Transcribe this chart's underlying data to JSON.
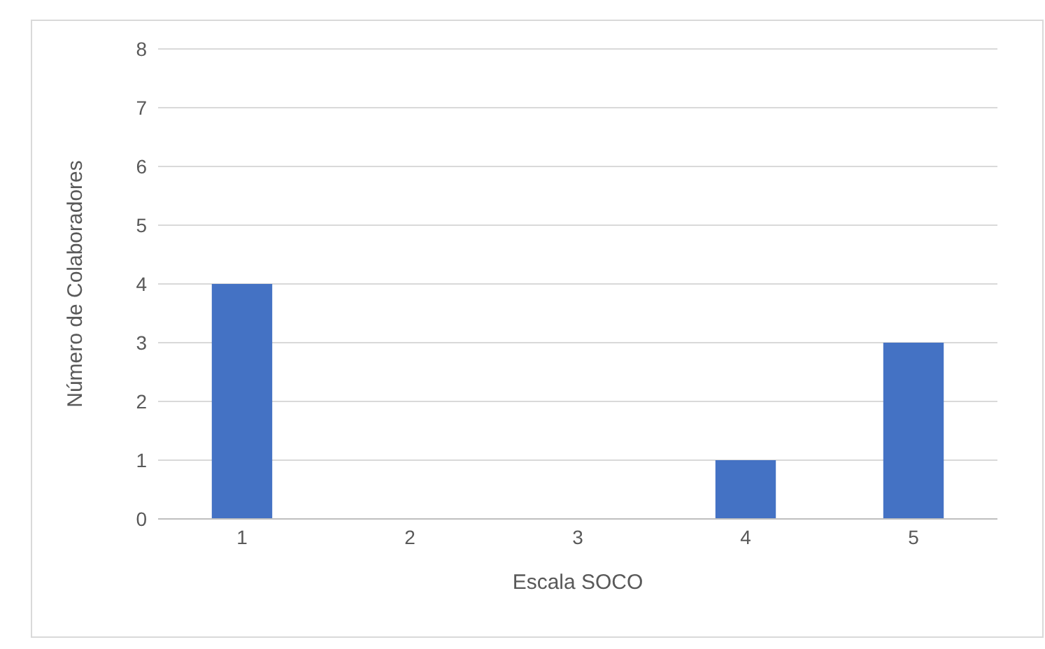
{
  "chart_data": {
    "type": "bar",
    "xlabel": "Escala SOCO",
    "ylabel": "Número de Colaboradores",
    "categories": [
      "1",
      "2",
      "3",
      "4",
      "5"
    ],
    "values": [
      4,
      0,
      0,
      1,
      3
    ],
    "color": "#4472c4",
    "ylim": [
      0,
      8
    ],
    "yticks": [
      0,
      1,
      2,
      3,
      4,
      5,
      6,
      7,
      8
    ],
    "grid": "y"
  }
}
